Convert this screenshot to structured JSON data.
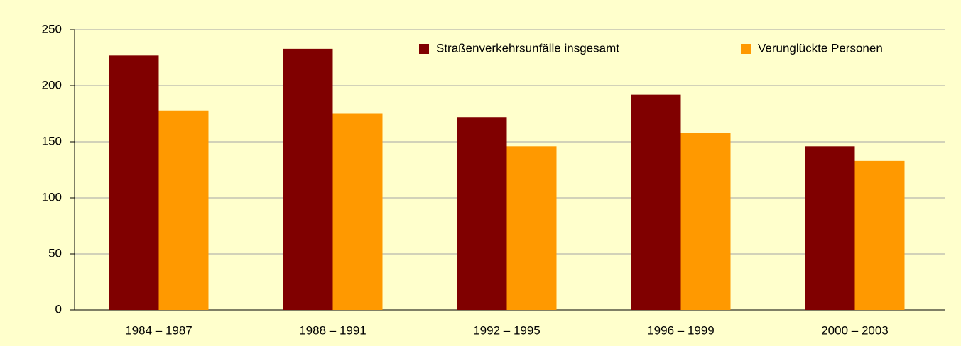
{
  "chart_data": {
    "type": "bar",
    "categories": [
      "1984 – 1987",
      "1988 – 1991",
      "1992 – 1995",
      "1996 – 1999",
      "2000 – 2003"
    ],
    "series": [
      {
        "name": "Straßenverkehrsunfälle insgesamt",
        "color": "#800000",
        "values": [
          227,
          233,
          172,
          192,
          146
        ]
      },
      {
        "name": "Verunglückte Personen",
        "color": "#FF9900",
        "values": [
          178,
          175,
          146,
          158,
          133
        ]
      }
    ],
    "ylim": [
      0,
      250
    ],
    "yticks": [
      0,
      50,
      100,
      150,
      200,
      250
    ],
    "grid": true,
    "legend": "top-right"
  }
}
